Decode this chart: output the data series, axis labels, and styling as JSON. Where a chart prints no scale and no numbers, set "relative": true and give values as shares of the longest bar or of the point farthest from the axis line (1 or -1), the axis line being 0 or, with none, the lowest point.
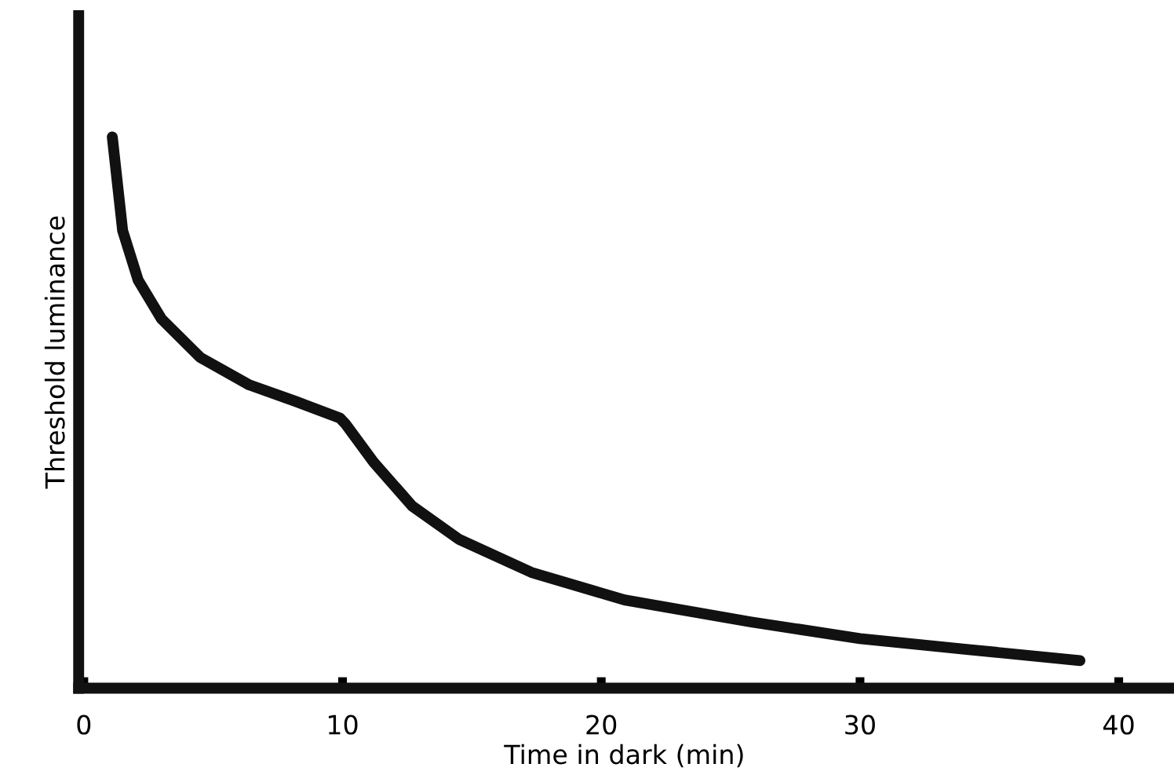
{
  "chart_data": {
    "type": "line",
    "xlabel": "Time in dark (min)",
    "ylabel": "Threshold luminance",
    "relative": true,
    "xlim": [
      -0.2,
      42
    ],
    "xticks": [
      0,
      10,
      20,
      30,
      40
    ],
    "color": "#111111",
    "marker": "none",
    "line_style": "solid",
    "grid": false,
    "legend": false,
    "x": [
      1.1,
      1.5,
      2.1,
      3.0,
      4.5,
      6.4,
      8.2,
      9.9,
      10.1,
      11.2,
      12.7,
      14.5,
      17.3,
      20.9,
      25.8,
      30,
      34.2,
      38.5
    ],
    "values": [
      1.0,
      0.83,
      0.74,
      0.67,
      0.6,
      0.55,
      0.52,
      0.49,
      0.48,
      0.41,
      0.33,
      0.27,
      0.21,
      0.16,
      0.12,
      0.09,
      0.07,
      0.05
    ]
  }
}
